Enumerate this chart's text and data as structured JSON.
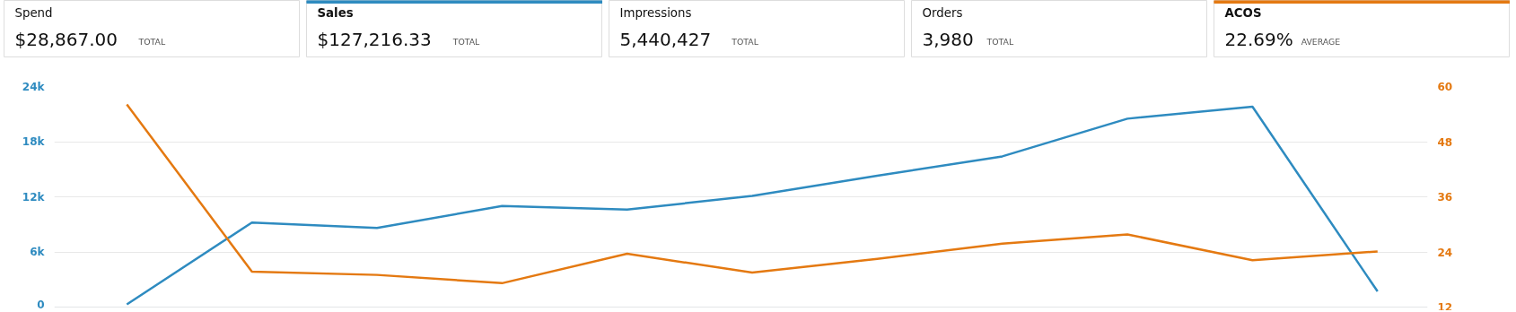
{
  "chart_data": [
    {
      "type": "other",
      "title": "Spend",
      "annotations": [
        "$28,867.00",
        "TOTAL"
      ]
    },
    {
      "type": "other",
      "title": "Sales",
      "color": "#2e8bc0",
      "annotations": [
        "$127,216.33",
        "TOTAL"
      ]
    },
    {
      "type": "other",
      "title": "Impressions",
      "annotations": [
        "5,440,427",
        "TOTAL"
      ]
    },
    {
      "type": "other",
      "title": "Orders",
      "annotations": [
        "3,980",
        "TOTAL"
      ]
    },
    {
      "type": "other",
      "title": "ACOS",
      "color": "#e47911",
      "annotations": [
        "22.69%",
        "AVERAGE"
      ]
    },
    {
      "type": "line",
      "categories": [
        null,
        null,
        null,
        null,
        null,
        null,
        null,
        null,
        null,
        null,
        null
      ],
      "series": [
        {
          "color": "#2e8bc0",
          "values": [
            300,
            9200,
            8600,
            11000,
            10600,
            12100,
            14300,
            16400,
            20500,
            21800,
            1700
          ]
        },
        {
          "color": "#e47911",
          "axis": "y2",
          "values": [
            56.1,
            19.7,
            19.0,
            17.2,
            23.6,
            19.5,
            22.5,
            25.8,
            27.8,
            22.2,
            24.1
          ]
        }
      ],
      "ylim": [
        0,
        24000
      ],
      "yticks": [
        {
          "value": 0,
          "label": "0"
        },
        {
          "value": 6000,
          "label": "6k"
        },
        {
          "value": 12000,
          "label": "12k"
        },
        {
          "value": 18000,
          "label": "18k"
        },
        {
          "value": 24000,
          "label": "24k"
        }
      ],
      "y2lim": [
        12,
        60
      ],
      "y2ticks": [
        12,
        24,
        36,
        48,
        60
      ],
      "grid": "y",
      "marker": "none",
      "line_style": "solid"
    }
  ]
}
